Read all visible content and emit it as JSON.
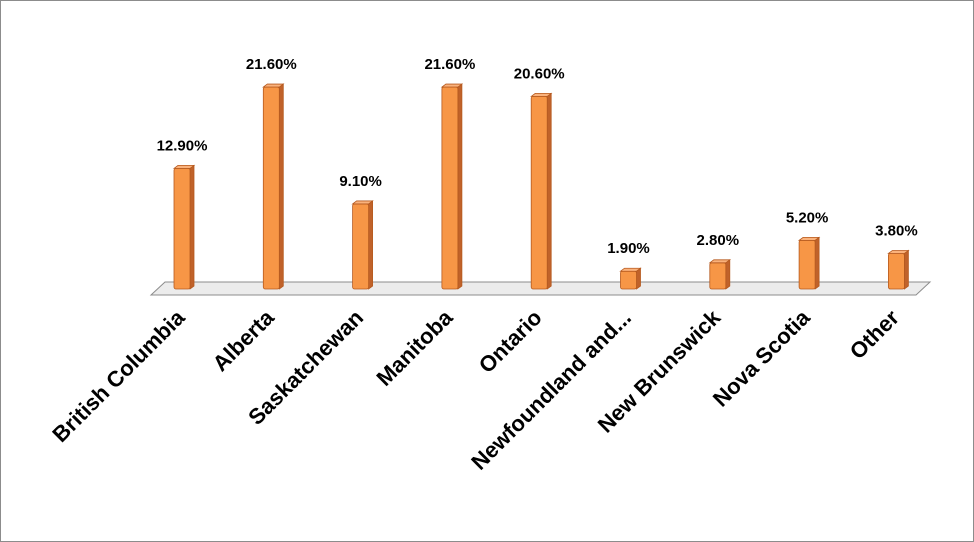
{
  "chart_data": {
    "type": "bar",
    "categories": [
      "British Columbia",
      "Alberta",
      "Saskatchewan",
      "Manitoba",
      "Ontario",
      "Newfoundland and...",
      "New Brunswick",
      "Nova Scotia",
      "Other"
    ],
    "values": [
      12.9,
      21.6,
      9.1,
      21.6,
      20.6,
      1.9,
      2.8,
      5.2,
      3.8
    ],
    "data_labels": [
      "12.90%",
      "21.60%",
      "9.10%",
      "21.60%",
      "20.60%",
      "1.90%",
      "2.80%",
      "5.20%",
      "3.80%"
    ],
    "title": "",
    "xlabel": "",
    "ylabel": "",
    "ylim": [
      0,
      25
    ],
    "grid": false,
    "legend": "none",
    "style": "3d-cylinder-columns"
  },
  "colors": {
    "bar_front": "#f79646",
    "bar_side": "#c0622a",
    "bar_top": "#fab27c",
    "bar_edge": "#b65a1f",
    "floor": "#ececec",
    "floor_edge": "#8c8c8c",
    "frame": "#8c8c8c"
  }
}
